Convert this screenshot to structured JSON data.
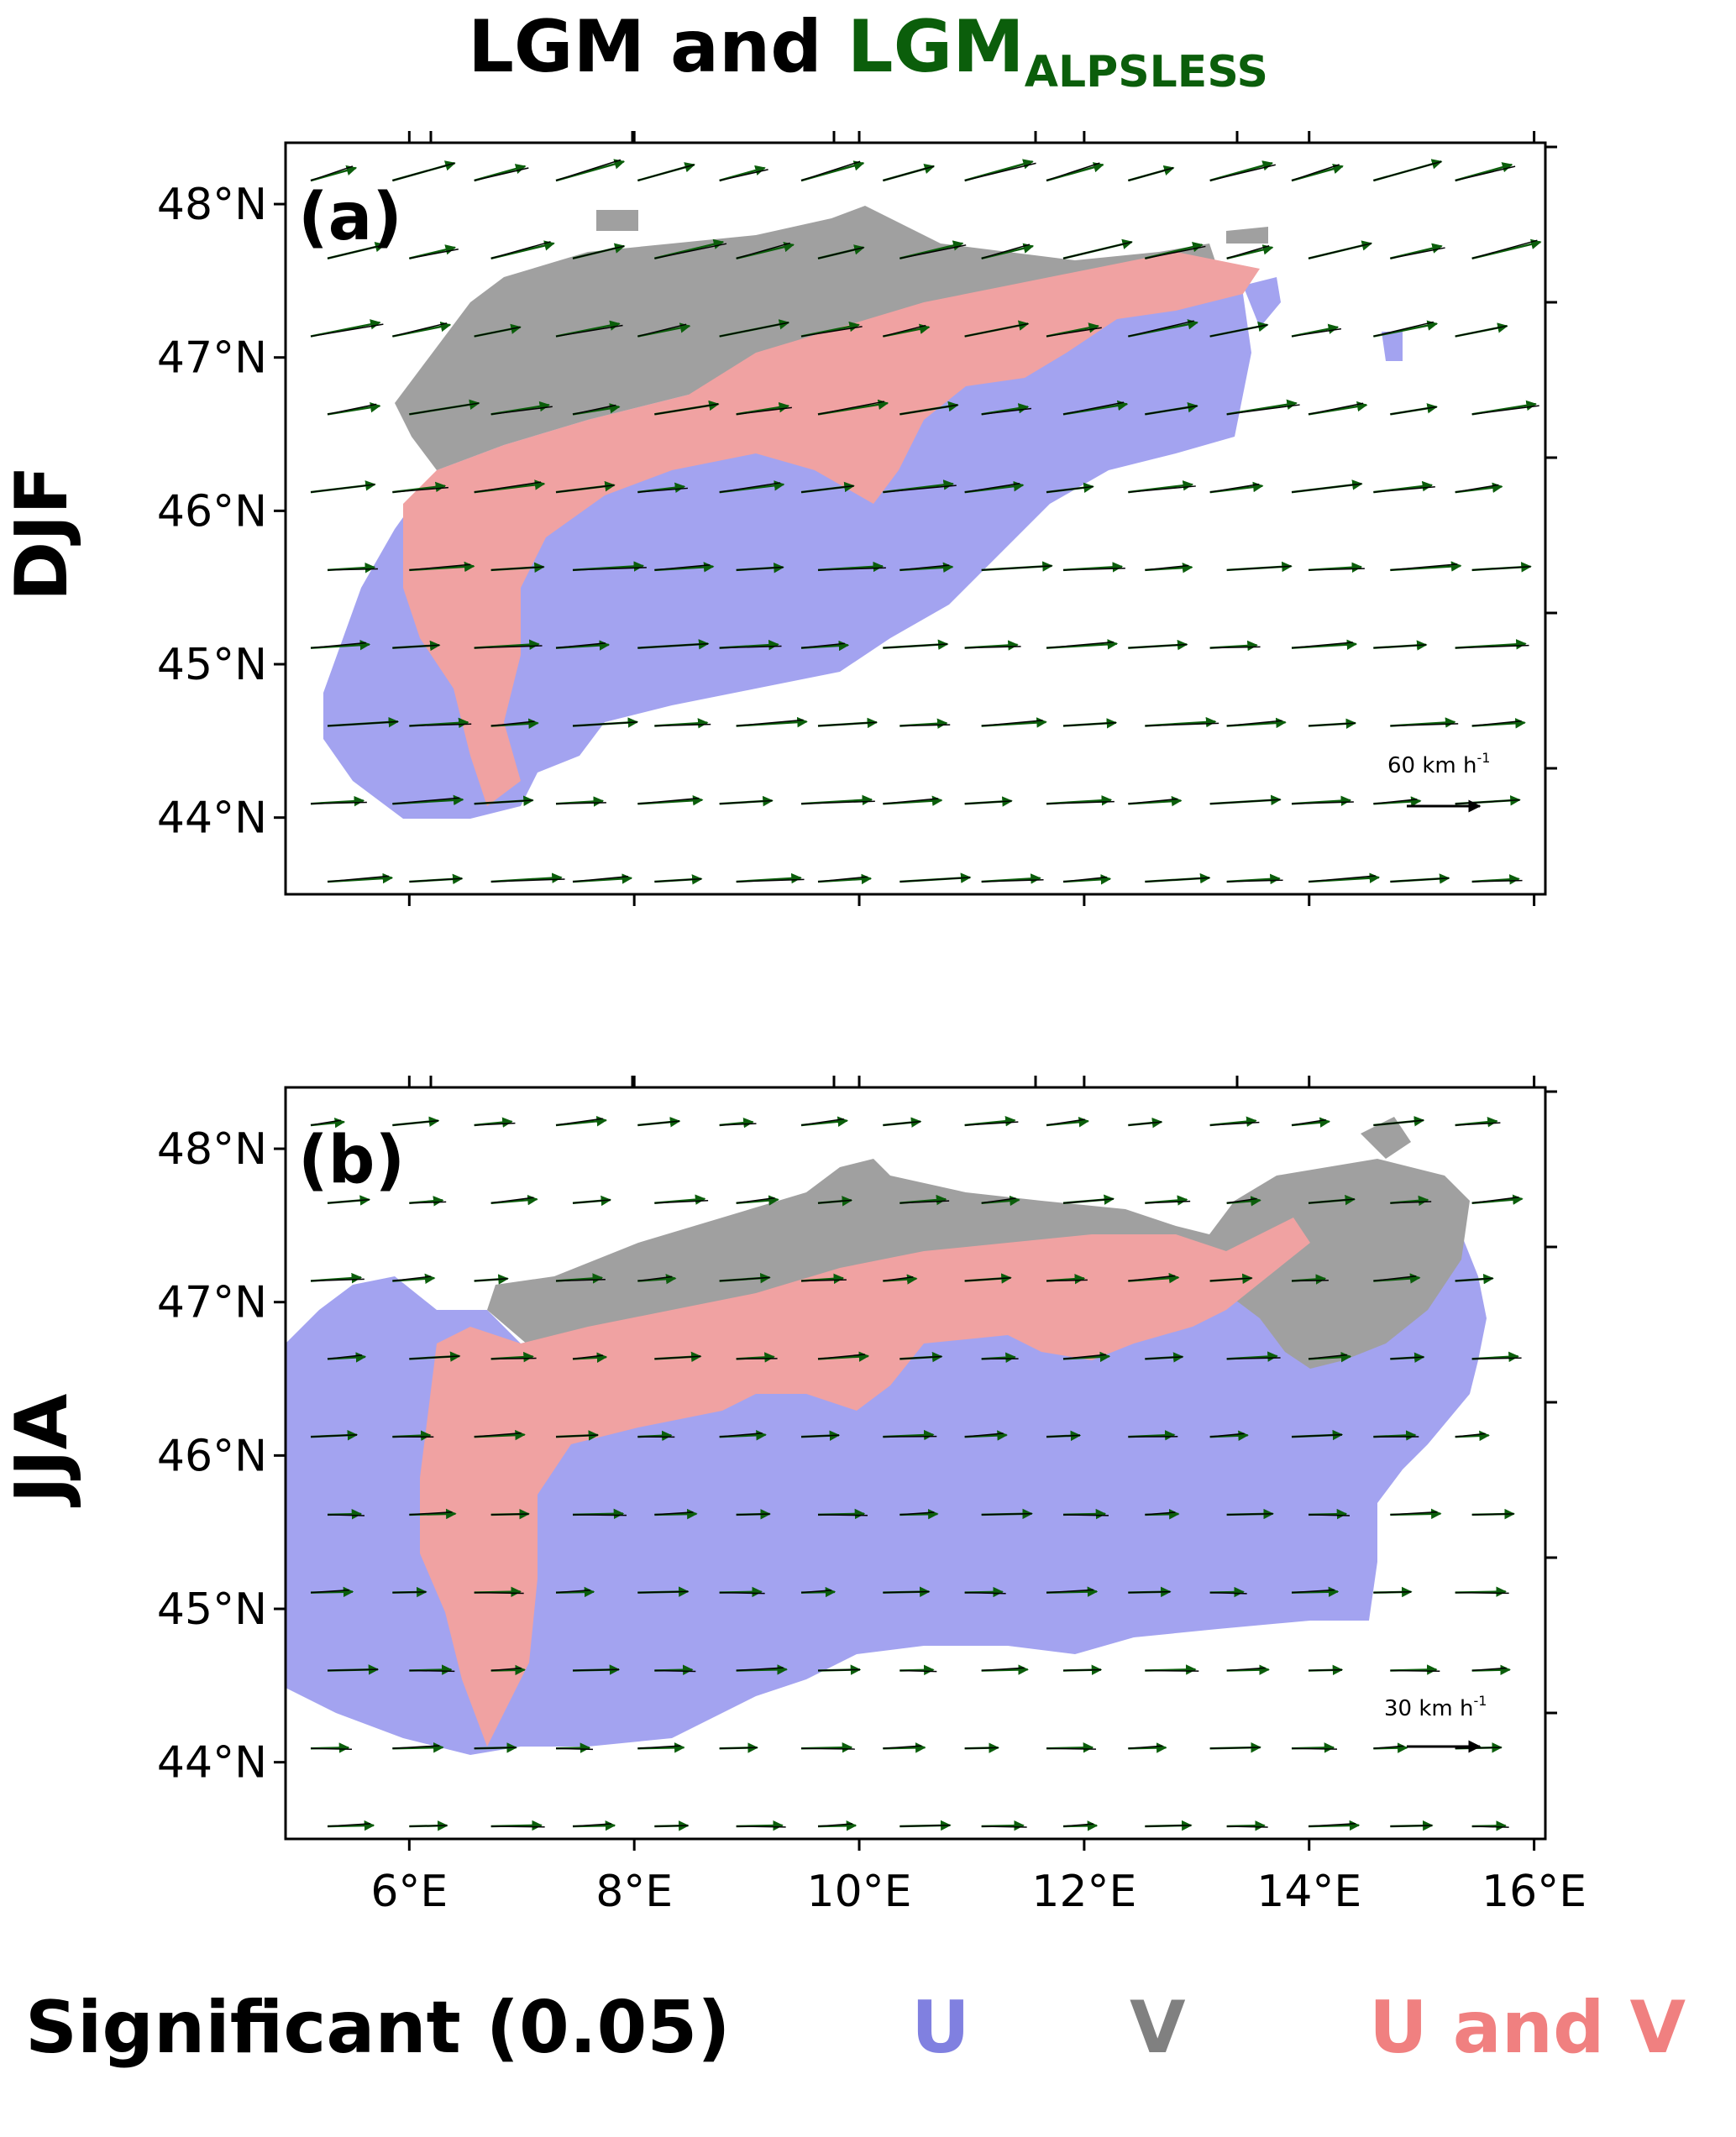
{
  "figure": {
    "title_main": "LGM and",
    "title_green": "LGM",
    "title_green_sub": "ALPSLESS",
    "colors": {
      "sig_u": "#a3a3f0",
      "sig_v": "#a0a0a0",
      "sig_uv": "#f0a2a2",
      "arrow_lgm": "#000000",
      "arrow_alpsless": "#0b5e0b",
      "legend_u": "#8080e0",
      "legend_v": "#808080",
      "legend_uv": "#f08080"
    }
  },
  "panels": [
    {
      "id": "a",
      "label": "(a)",
      "season": "DJF",
      "scale_label": "60 km h",
      "scale_unit_sup": "-1"
    },
    {
      "id": "b",
      "label": "(b)",
      "season": "JJA",
      "scale_label": "30 km h",
      "scale_unit_sup": "-1"
    }
  ],
  "axes": {
    "lat_ticks": [
      "48°N",
      "47°N",
      "46°N",
      "45°N",
      "44°N"
    ],
    "lon_ticks": [
      "6°E",
      "8°E",
      "10°E",
      "12°E",
      "14°E",
      "16°E"
    ],
    "lat_range": [
      43.5,
      48.4
    ],
    "lon_range": [
      4.9,
      16.1
    ]
  },
  "legend": {
    "prefix": "Significant (0.05)",
    "u": "U",
    "v": "V",
    "uv": "U and V"
  }
}
